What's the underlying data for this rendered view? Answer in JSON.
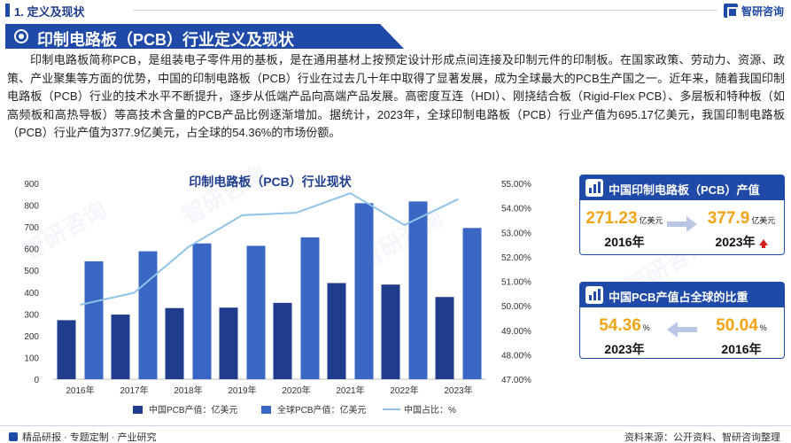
{
  "header": {
    "section_label": "1. 定义及现状",
    "logo_text": "智研咨询"
  },
  "banner": {
    "title": "印制电路板（PCB）行业定义及现状"
  },
  "intro": {
    "text": "印制电路板简称PCB，是组装电子零件用的基板，是在通用基材上按预定设计形成点间连接及印制元件的印制板。在国家政策、劳动力、资源、政策、产业聚集等方面的优势，中国的印制电路板（PCB）行业在过去几十年中取得了显著发展，成为全球最大的PCB生产国之一。近年来，随着我国印制电路板（PCB）行业的技术水平不断提升，逐步从低端产品向高端产品发展。高密度互连（HDI）、刚挠结合板（Rigid-Flex PCB）、多层板和特种板（如高频板和高热导板）等高技术含量的PCB产品比例逐渐增加。据统计，2023年，全球印制电路板（PCB）行业产值为695.17亿美元，我国印制电路板（PCB）行业产值为377.9亿美元，占全球的54.36%的市场份额。"
  },
  "chart_data": {
    "type": "bar",
    "title": "印制电路板（PCB）行业现状",
    "categories": [
      "2016年",
      "2017年",
      "2018年",
      "2019年",
      "2020年",
      "2021年",
      "2022年",
      "2023年"
    ],
    "series": [
      {
        "name": "中国PCB产值：亿美元",
        "type": "bar",
        "axis": "left",
        "color": "#1f3d8c",
        "values": [
          271.23,
          297,
          327,
          329,
          351,
          442,
          435,
          377.9
        ]
      },
      {
        "name": "全球PCB产值：亿美元",
        "type": "bar",
        "axis": "left",
        "color": "#3a66c4",
        "values": [
          542,
          588,
          624,
          613,
          652,
          809,
          817,
          695.17
        ]
      },
      {
        "name": "中国占比：%",
        "type": "line",
        "axis": "right",
        "color": "#8fc3e8",
        "values": [
          50.04,
          50.53,
          52.4,
          53.7,
          53.8,
          54.6,
          53.3,
          54.36
        ]
      }
    ],
    "ylim_left": [
      0,
      900
    ],
    "yticks_left": [
      "0",
      "100",
      "200",
      "300",
      "400",
      "500",
      "600",
      "700",
      "800",
      "900"
    ],
    "ylim_right": [
      47.0,
      55.0
    ],
    "yticks_right": [
      "47.00%",
      "48.00%",
      "49.00%",
      "50.00%",
      "51.00%",
      "52.00%",
      "53.00%",
      "54.00%",
      "55.00%"
    ],
    "grid": false,
    "legend_position": "bottom"
  },
  "card_output": {
    "title": "中国印制电路板（PCB）产值",
    "left_value": "271.23",
    "left_unit": "亿美元",
    "left_year": "2016年",
    "right_value": "377.9",
    "right_unit": "亿美元",
    "right_year": "2023年"
  },
  "card_share": {
    "title": "中国PCB产值占全球的比重",
    "left_value": "54.36",
    "left_unit": "%",
    "left_year": "2023年",
    "right_value": "50.04",
    "right_unit": "%",
    "right_year": "2016年"
  },
  "footer": {
    "tagline": "精品研报 · 专题定制 · 产业研究",
    "source": "资料来源：公开资料、智研咨询整理"
  },
  "colors": {
    "brand": "#1f4aa8",
    "highlight": "#f0a416",
    "up": "#d4201d"
  }
}
